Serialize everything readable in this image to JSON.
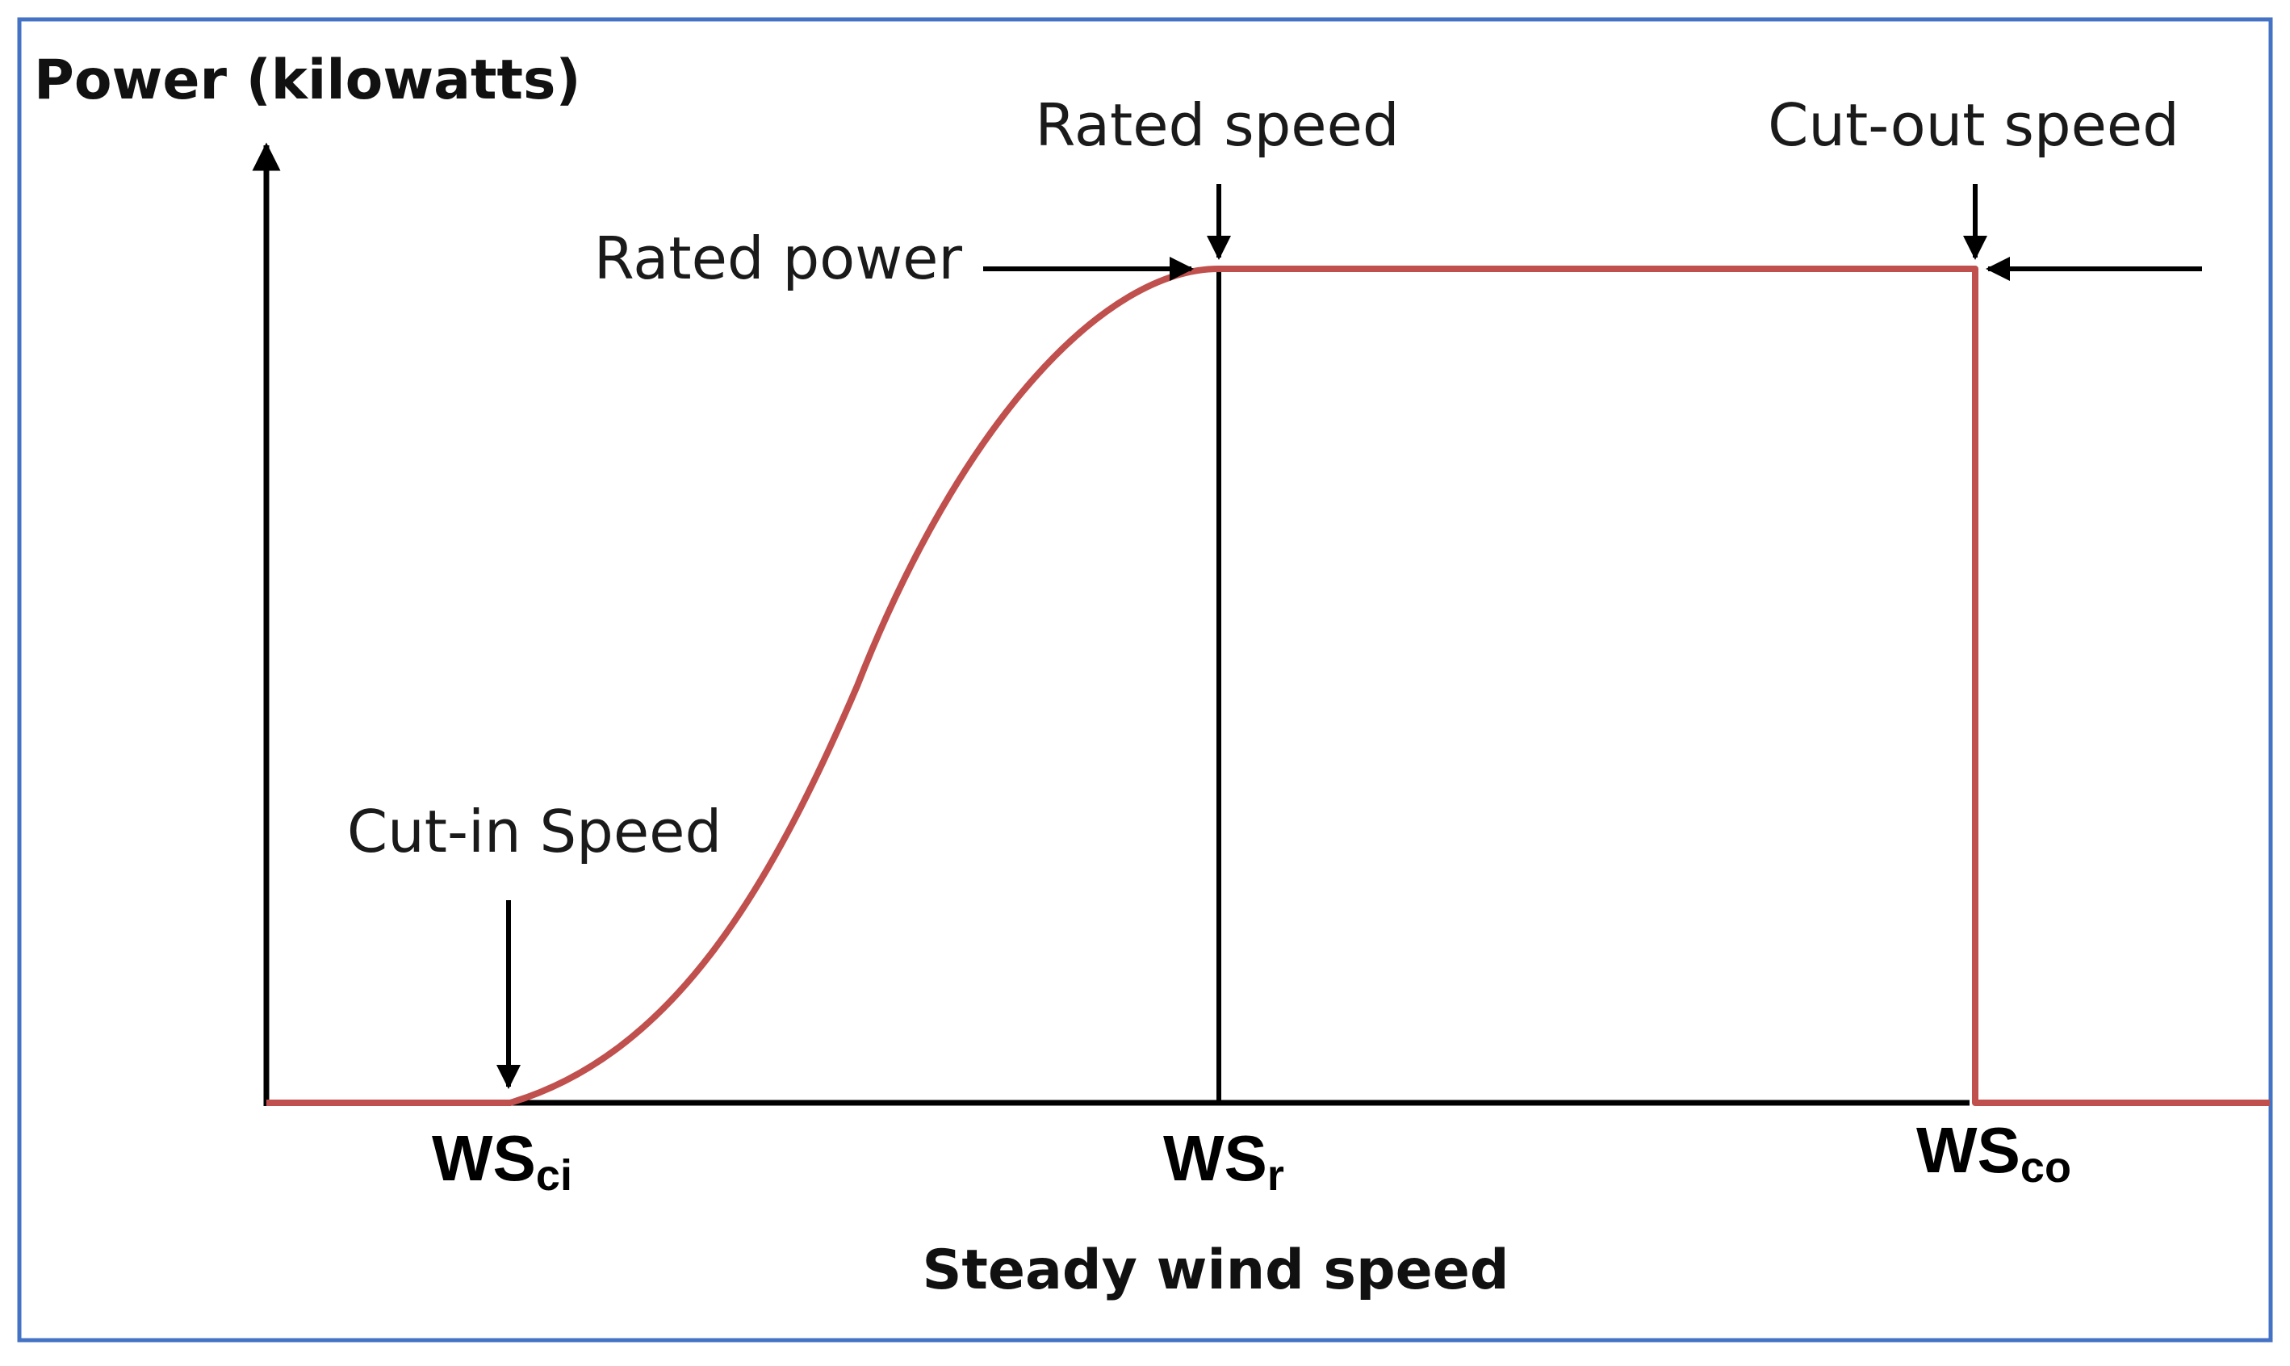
{
  "chart_data": {
    "type": "line",
    "title": "",
    "ylabel": "Power (kilowatts)",
    "xlabel": "Steady wind speed",
    "colors": {
      "curve": "#c0504d",
      "axis": "#000000",
      "frame": "#4472c4"
    },
    "x_ticks": [
      {
        "main": "WS",
        "sub": "ci"
      },
      {
        "main": "WS",
        "sub": "r"
      },
      {
        "main": "WS",
        "sub": "co"
      }
    ],
    "annotations": {
      "rated_speed": "Rated speed",
      "cut_out_speed": "Cut-out speed",
      "rated_power": "Rated power",
      "cut_in_speed": "Cut-in Speed"
    },
    "series": [
      {
        "x": [
          0,
          1,
          2,
          3,
          4,
          5,
          6,
          7,
          8,
          9,
          10,
          11,
          12,
          13
        ],
        "y": [
          0,
          0,
          0.13,
          0.38,
          0.72,
          0.94,
          1,
          1,
          1,
          1,
          1,
          1,
          0,
          0
        ]
      }
    ],
    "x_levels": {
      "cut_in": 1,
      "rated": 6,
      "cut_out": 12,
      "max": 13
    },
    "grid": false,
    "legend": "none"
  }
}
